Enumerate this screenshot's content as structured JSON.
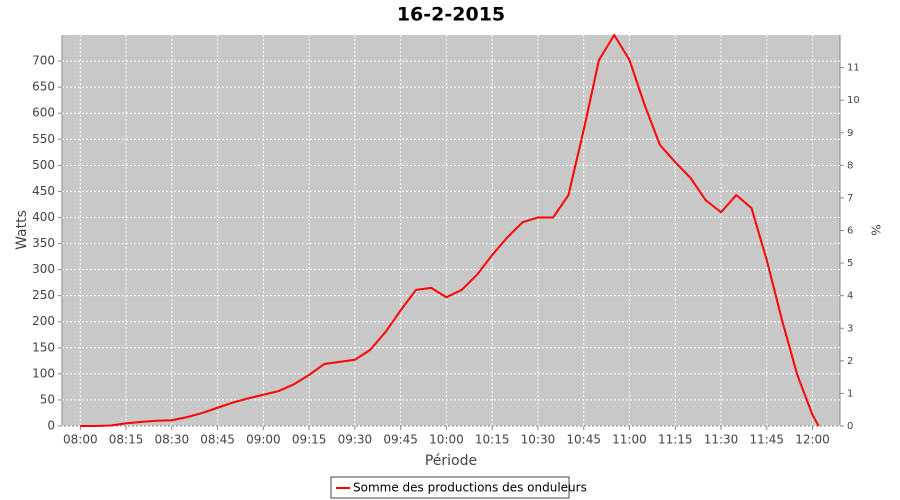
{
  "chart_data": {
    "type": "line",
    "title": "16-2-2015",
    "x_label": "Période",
    "y_label": "Watts",
    "y2_label": "%",
    "x": [
      "08:00",
      "08:05",
      "08:10",
      "08:15",
      "08:20",
      "08:25",
      "08:30",
      "08:35",
      "08:40",
      "08:45",
      "08:50",
      "08:55",
      "09:00",
      "09:05",
      "09:10",
      "09:15",
      "09:20",
      "09:25",
      "09:30",
      "09:35",
      "09:40",
      "09:45",
      "09:50",
      "09:55",
      "10:00",
      "10:05",
      "10:10",
      "10:15",
      "10:20",
      "10:25",
      "10:30",
      "10:35",
      "10:40",
      "10:45",
      "10:50",
      "10:55",
      "11:00",
      "11:05",
      "11:10",
      "11:15",
      "11:20",
      "11:25",
      "11:30",
      "11:35",
      "11:40",
      "11:45",
      "11:50",
      "11:55",
      "12:00",
      "12:02"
    ],
    "series": [
      {
        "name": "Somme des productions des onduleurs",
        "color": "#ff0000",
        "values": [
          0,
          0,
          1,
          5,
          8,
          10,
          11,
          17,
          25,
          35,
          45,
          53,
          60,
          67,
          80,
          98,
          119,
          123,
          127,
          146,
          180,
          222,
          261,
          265,
          247,
          261,
          290,
          328,
          362,
          391,
          400,
          400,
          443,
          568,
          702,
          750,
          702,
          615,
          539,
          506,
          476,
          433,
          410,
          443,
          418,
          318,
          203,
          98,
          21,
          0
        ]
      }
    ],
    "xlim": [
      "07:54",
      "12:09"
    ],
    "xticks": [
      "08:00",
      "08:15",
      "08:30",
      "08:45",
      "09:00",
      "09:15",
      "09:30",
      "09:45",
      "10:00",
      "10:15",
      "10:30",
      "10:45",
      "11:00",
      "11:15",
      "11:30",
      "11:45",
      "12:00"
    ],
    "ylim": [
      0,
      750
    ],
    "yticks": [
      0,
      50,
      100,
      150,
      200,
      250,
      300,
      350,
      400,
      450,
      500,
      550,
      600,
      650,
      700
    ],
    "y2lim": [
      0,
      12
    ],
    "y2ticks": [
      0,
      1,
      2,
      3,
      4,
      5,
      6,
      7,
      8,
      9,
      10,
      11
    ],
    "grid": true,
    "legend": "bottom"
  }
}
